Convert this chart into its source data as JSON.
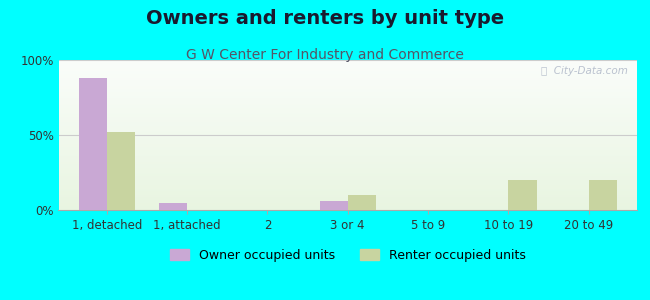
{
  "title": "Owners and renters by unit type",
  "subtitle": "G W Center For Industry and Commerce",
  "categories": [
    "1, detached",
    "1, attached",
    "2",
    "3 or 4",
    "5 to 9",
    "10 to 19",
    "20 to 49"
  ],
  "owner_values": [
    88,
    5,
    0,
    6,
    0,
    0,
    0
  ],
  "renter_values": [
    52,
    0,
    0,
    10,
    0,
    20,
    20
  ],
  "owner_color": "#c9a8d4",
  "renter_color": "#c8d4a0",
  "background_color": "#00ffff",
  "ylim": [
    0,
    100
  ],
  "yticks": [
    0,
    50,
    100
  ],
  "ytick_labels": [
    "0%",
    "50%",
    "100%"
  ],
  "bar_width": 0.35,
  "legend_owner": "Owner occupied units",
  "legend_renter": "Renter occupied units",
  "title_fontsize": 14,
  "subtitle_fontsize": 10,
  "tick_fontsize": 8.5,
  "legend_fontsize": 9
}
